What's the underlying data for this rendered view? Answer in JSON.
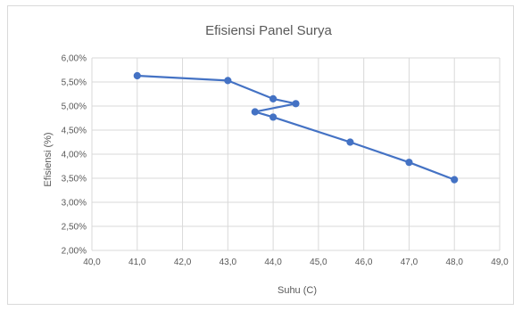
{
  "chart_data": {
    "type": "line",
    "title": "Efisiensi Panel Surya",
    "xlabel": "Suhu (C)",
    "ylabel": "Efisiensi (%)",
    "xlim": [
      40.0,
      49.0
    ],
    "ylim": [
      2.0,
      6.0
    ],
    "x_ticks": [
      "40,0",
      "41,0",
      "42,0",
      "43,0",
      "44,0",
      "45,0",
      "46,0",
      "47,0",
      "48,0",
      "49,0"
    ],
    "y_ticks": [
      "2,00%",
      "2,50%",
      "3,00%",
      "3,50%",
      "4,00%",
      "4,50%",
      "5,00%",
      "5,50%",
      "6,00%"
    ],
    "grid": true,
    "line_color": "#4472c4",
    "series": [
      {
        "points": [
          {
            "x": 41.0,
            "y": 5.63
          },
          {
            "x": 43.0,
            "y": 5.53
          },
          {
            "x": 44.0,
            "y": 5.15
          },
          {
            "x": 44.5,
            "y": 5.05
          },
          {
            "x": 43.6,
            "y": 4.88
          },
          {
            "x": 44.0,
            "y": 4.77
          },
          {
            "x": 45.7,
            "y": 4.25
          },
          {
            "x": 47.0,
            "y": 3.83
          },
          {
            "x": 48.0,
            "y": 3.47
          }
        ]
      }
    ]
  }
}
